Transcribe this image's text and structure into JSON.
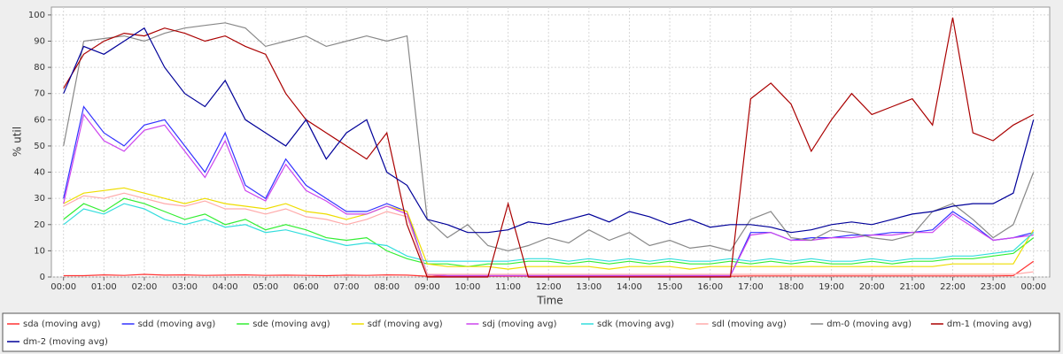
{
  "chart_data": {
    "type": "line",
    "x_label": "Time",
    "y_label": "% util",
    "xlim": [
      -0.3,
      24.4
    ],
    "ylim": [
      0,
      103
    ],
    "xticks": [
      {
        "value": 0,
        "label": "00:00"
      },
      {
        "value": 1,
        "label": "01:00"
      },
      {
        "value": 2,
        "label": "02:00"
      },
      {
        "value": 3,
        "label": "03:00"
      },
      {
        "value": 4,
        "label": "04:00"
      },
      {
        "value": 5,
        "label": "05:00"
      },
      {
        "value": 6,
        "label": "06:00"
      },
      {
        "value": 7,
        "label": "07:00"
      },
      {
        "value": 8,
        "label": "08:00"
      },
      {
        "value": 9,
        "label": "09:00"
      },
      {
        "value": 10,
        "label": "10:00"
      },
      {
        "value": 11,
        "label": "11:00"
      },
      {
        "value": 12,
        "label": "12:00"
      },
      {
        "value": 13,
        "label": "13:00"
      },
      {
        "value": 14,
        "label": "14:00"
      },
      {
        "value": 15,
        "label": "15:00"
      },
      {
        "value": 16,
        "label": "16:00"
      },
      {
        "value": 17,
        "label": "17:00"
      },
      {
        "value": 18,
        "label": "18:00"
      },
      {
        "value": 19,
        "label": "19:00"
      },
      {
        "value": 20,
        "label": "20:00"
      },
      {
        "value": 21,
        "label": "21:00"
      },
      {
        "value": 22,
        "label": "22:00"
      },
      {
        "value": 23,
        "label": "23:00"
      },
      {
        "value": 24,
        "label": "00:00"
      }
    ],
    "yticks": [
      0,
      10,
      20,
      30,
      40,
      50,
      60,
      70,
      80,
      90,
      100
    ],
    "grid": true,
    "legend": "bottom",
    "x": [
      0,
      0.5,
      1,
      1.5,
      2,
      2.5,
      3,
      3.5,
      4,
      4.5,
      5,
      5.5,
      6,
      6.5,
      7,
      7.5,
      8,
      8.5,
      9,
      9.5,
      10,
      10.5,
      11,
      11.5,
      12,
      12.5,
      13,
      13.5,
      14,
      14.5,
      15,
      15.5,
      16,
      16.5,
      17,
      17.5,
      18,
      18.5,
      19,
      19.5,
      20,
      20.5,
      21,
      21.5,
      22,
      22.5,
      23,
      23.5,
      24
    ],
    "series": [
      {
        "name": "sda (moving avg)",
        "color": "#ff3333",
        "values": [
          0.5,
          0.5,
          0.8,
          0.6,
          1,
          0.7,
          0.8,
          0.6,
          0.7,
          0.8,
          0.6,
          0.7,
          0.6,
          0.5,
          0.7,
          0.6,
          0.8,
          0.7,
          0.3,
          0.3,
          0.3,
          0.3,
          0.3,
          0.3,
          0.3,
          0.3,
          0.3,
          0.3,
          0.3,
          0.3,
          0.3,
          0.3,
          0.3,
          0.3,
          0.4,
          0.4,
          0.4,
          0.4,
          0.4,
          0.4,
          0.4,
          0.4,
          0.4,
          0.4,
          0.4,
          0.4,
          0.4,
          0.5,
          6
        ]
      },
      {
        "name": "sdd (moving avg)",
        "color": "#3333ff",
        "values": [
          30,
          65,
          55,
          50,
          58,
          60,
          50,
          40,
          55,
          35,
          30,
          45,
          35,
          30,
          25,
          25,
          28,
          25,
          1,
          0.5,
          0.5,
          0.5,
          0.5,
          0.5,
          0.5,
          0.5,
          0.5,
          0.5,
          0.5,
          0.5,
          0.5,
          0.5,
          0.5,
          0.5,
          17,
          17,
          14,
          15,
          15,
          16,
          16,
          17,
          17,
          18,
          25,
          20,
          14,
          15,
          17
        ]
      },
      {
        "name": "sde (moving avg)",
        "color": "#33ee33",
        "values": [
          22,
          28,
          25,
          30,
          28,
          25,
          22,
          24,
          20,
          22,
          18,
          20,
          18,
          15,
          14,
          15,
          10,
          7,
          5,
          5,
          4,
          5,
          5,
          6,
          6,
          5,
          6,
          5,
          6,
          5,
          6,
          5,
          5,
          6,
          5,
          6,
          5,
          6,
          5,
          5,
          6,
          5,
          6,
          6,
          7,
          7,
          8,
          9,
          15
        ]
      },
      {
        "name": "sdf (moving avg)",
        "color": "#eedd00",
        "values": [
          28,
          32,
          33,
          34,
          32,
          30,
          28,
          30,
          28,
          27,
          26,
          28,
          25,
          24,
          22,
          24,
          27,
          25,
          5,
          4,
          4,
          4,
          3,
          4,
          4,
          4,
          4,
          3,
          4,
          4,
          4,
          3,
          4,
          4,
          4,
          4,
          4,
          4,
          4,
          4,
          4,
          4,
          4,
          4,
          5,
          5,
          5,
          5,
          18
        ]
      },
      {
        "name": "sdj (moving avg)",
        "color": "#cc44ee",
        "values": [
          28,
          62,
          52,
          48,
          56,
          58,
          48,
          38,
          52,
          33,
          29,
          43,
          33,
          29,
          24,
          24,
          27,
          24,
          1,
          0.5,
          0.5,
          0.5,
          0.5,
          0.5,
          0.5,
          0.5,
          0.5,
          0.5,
          0.5,
          0.5,
          0.5,
          0.5,
          0.5,
          0.5,
          16,
          17,
          14,
          14,
          15,
          15,
          16,
          16,
          17,
          17,
          24,
          19,
          14,
          15,
          16
        ]
      },
      {
        "name": "sdk (moving avg)",
        "color": "#33dddd",
        "values": [
          20,
          26,
          24,
          28,
          26,
          22,
          20,
          22,
          19,
          20,
          17,
          18,
          16,
          14,
          12,
          13,
          12,
          8,
          6,
          6,
          6,
          6,
          6,
          7,
          7,
          6,
          7,
          6,
          7,
          6,
          7,
          6,
          6,
          7,
          6,
          7,
          6,
          7,
          6,
          6,
          7,
          6,
          7,
          7,
          8,
          8,
          9,
          10,
          17
        ]
      },
      {
        "name": "sdl (moving avg)",
        "color": "#ffaaaa",
        "values": [
          27,
          31,
          30,
          32,
          30,
          28,
          27,
          29,
          26,
          26,
          24,
          26,
          23,
          22,
          20,
          22,
          25,
          23,
          1,
          1,
          1,
          1,
          1,
          1,
          1,
          1,
          1,
          1,
          1,
          1,
          1,
          1,
          1,
          1,
          1,
          1,
          1,
          1,
          1,
          1,
          1,
          1,
          1,
          1,
          1,
          1,
          1,
          1,
          2
        ]
      },
      {
        "name": "dm-0 (moving avg)",
        "color": "#888888",
        "values": [
          50,
          90,
          91,
          92,
          90,
          93,
          95,
          96,
          97,
          95,
          88,
          90,
          92,
          88,
          90,
          92,
          90,
          92,
          22,
          15,
          20,
          12,
          10,
          12,
          15,
          13,
          18,
          14,
          17,
          12,
          14,
          11,
          12,
          10,
          22,
          25,
          15,
          14,
          18,
          17,
          15,
          14,
          16,
          25,
          28,
          22,
          15,
          20,
          40
        ]
      },
      {
        "name": "dm-1 (moving avg)",
        "color": "#aa0000",
        "values": [
          72,
          85,
          90,
          93,
          92,
          95,
          93,
          90,
          92,
          88,
          85,
          70,
          60,
          55,
          50,
          45,
          55,
          20,
          0,
          0,
          0,
          0,
          28,
          0,
          0,
          0,
          0,
          0,
          0,
          0,
          0,
          0,
          0,
          0,
          68,
          74,
          66,
          48,
          60,
          70,
          62,
          65,
          68,
          58,
          99,
          55,
          52,
          58,
          62
        ]
      },
      {
        "name": "dm-2 (moving avg)",
        "color": "#000099",
        "values": [
          70,
          88,
          85,
          90,
          95,
          80,
          70,
          65,
          75,
          60,
          55,
          50,
          60,
          45,
          55,
          60,
          40,
          35,
          22,
          20,
          17,
          17,
          18,
          21,
          20,
          22,
          24,
          21,
          25,
          23,
          20,
          22,
          19,
          20,
          20,
          19,
          17,
          18,
          20,
          21,
          20,
          22,
          24,
          25,
          27,
          28,
          28,
          32,
          60
        ]
      }
    ]
  }
}
